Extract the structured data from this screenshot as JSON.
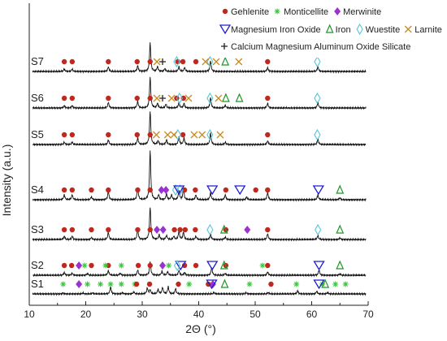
{
  "chart_data": {
    "type": "line",
    "title": "",
    "xlabel": "2Θ (°)",
    "ylabel": "Intensity (a.u.)",
    "xlim": [
      10,
      70
    ],
    "xticks": [
      "10",
      "20",
      "30",
      "40",
      "50",
      "60",
      "70"
    ],
    "grid": false,
    "legend_position": "top-right",
    "legend": [
      {
        "name": "Gehlenite",
        "marker": "circle",
        "color": "#c0281e"
      },
      {
        "name": "Monticellite",
        "marker": "asterisk",
        "color": "#3cc83c"
      },
      {
        "name": "Merwinite",
        "marker": "diamond",
        "color": "#9a32d2"
      },
      {
        "name": "Magnesium Iron Oxide",
        "marker": "triangle-down",
        "color": "#1e1ed2"
      },
      {
        "name": "Iron",
        "marker": "triangle-up",
        "color": "#1e9628"
      },
      {
        "name": "Wuestite",
        "marker": "diamond-open",
        "color": "#50c8dc"
      },
      {
        "name": "Larnite",
        "marker": "cross",
        "color": "#c88c1e"
      },
      {
        "name": "Calcium Magnesium Aluminum Oxide Silicate",
        "marker": "plus",
        "color": "#222222"
      }
    ],
    "series": [
      {
        "name": "S7",
        "peaks": [
          [
            16.2,
            0.05
          ],
          [
            17.6,
            0.05
          ],
          [
            24.0,
            0.1
          ],
          [
            29.2,
            0.12
          ],
          [
            31.4,
            0.6
          ],
          [
            32.7,
            0.1
          ],
          [
            34.0,
            0.06
          ],
          [
            36.5,
            0.1
          ],
          [
            37.5,
            0.08
          ],
          [
            42.1,
            0.22
          ],
          [
            52.2,
            0.08
          ],
          [
            61.1,
            0.1
          ]
        ],
        "markers": [
          {
            "type": "Gehlenite",
            "x": [
              16.2,
              17.6,
              24.0,
              29.1,
              31.4,
              36.3,
              37.2,
              39.5,
              52.2
            ]
          },
          {
            "type": "Wuestite",
            "x": [
              36.1,
              42.0,
              61.0
            ]
          },
          {
            "type": "Iron",
            "x": [
              44.7
            ]
          },
          {
            "type": "Larnite",
            "x": [
              32.6,
              41.2,
              43.1,
              47.1
            ]
          },
          {
            "type": "Calcium Magnesium Aluminum Oxide Silicate",
            "x": [
              33.6
            ]
          }
        ]
      },
      {
        "name": "S6",
        "peaks": [
          [
            16.2,
            0.05
          ],
          [
            17.6,
            0.05
          ],
          [
            24.0,
            0.12
          ],
          [
            29.2,
            0.14
          ],
          [
            31.4,
            0.65
          ],
          [
            32.7,
            0.1
          ],
          [
            34.2,
            0.08
          ],
          [
            36.5,
            0.12
          ],
          [
            37.4,
            0.1
          ],
          [
            42.1,
            0.22
          ],
          [
            44.7,
            0.06
          ],
          [
            52.2,
            0.1
          ],
          [
            61.1,
            0.12
          ]
        ],
        "markers": [
          {
            "type": "Gehlenite",
            "x": [
              16.2,
              17.6,
              24.0,
              29.1,
              31.4,
              36.1,
              37.3,
              52.2
            ]
          },
          {
            "type": "Wuestite",
            "x": [
              36.6,
              42.0,
              61.0
            ]
          },
          {
            "type": "Iron",
            "x": [
              44.8,
              47.2
            ]
          },
          {
            "type": "Larnite",
            "x": [
              32.6,
              35.2,
              38.2,
              43.5
            ]
          },
          {
            "type": "Calcium Magnesium Aluminum Oxide Silicate",
            "x": [
              33.6
            ]
          }
        ]
      },
      {
        "name": "S5",
        "peaks": [
          [
            16.2,
            0.05
          ],
          [
            17.6,
            0.05
          ],
          [
            24.0,
            0.1
          ],
          [
            29.2,
            0.14
          ],
          [
            31.4,
            0.7
          ],
          [
            32.8,
            0.08
          ],
          [
            34.3,
            0.1
          ],
          [
            36.5,
            0.16
          ],
          [
            37.4,
            0.14
          ],
          [
            42.1,
            0.24
          ],
          [
            44.7,
            0.05
          ],
          [
            52.2,
            0.08
          ],
          [
            61.1,
            0.12
          ]
        ],
        "markers": [
          {
            "type": "Gehlenite",
            "x": [
              16.2,
              17.6,
              24.0,
              29.1,
              31.4,
              37.2,
              52.2
            ]
          },
          {
            "type": "Wuestite",
            "x": [
              36.3,
              42.0,
              61.0
            ]
          },
          {
            "type": "Larnite",
            "x": [
              32.5,
              34.5,
              35.6,
              39.2,
              40.6,
              43.8
            ]
          }
        ]
      },
      {
        "name": "S4",
        "peaks": [
          [
            16.2,
            0.1
          ],
          [
            17.6,
            0.1
          ],
          [
            21.0,
            0.06
          ],
          [
            24.0,
            0.18
          ],
          [
            29.2,
            0.25
          ],
          [
            31.4,
            1.0
          ],
          [
            32.9,
            0.1
          ],
          [
            34.3,
            0.12
          ],
          [
            35.2,
            0.1
          ],
          [
            36.5,
            0.18
          ],
          [
            37.3,
            0.22
          ],
          [
            39.5,
            0.1
          ],
          [
            42.1,
            0.14
          ],
          [
            44.7,
            0.1
          ],
          [
            48.5,
            0.06
          ],
          [
            52.2,
            0.15
          ],
          [
            61.1,
            0.1
          ],
          [
            65.0,
            0.04
          ]
        ],
        "markers": [
          {
            "type": "Gehlenite",
            "x": [
              16.2,
              17.6,
              21.0,
              24.0,
              29.2,
              31.4,
              37.5,
              39.4,
              44.8,
              50.1,
              52.2
            ]
          },
          {
            "type": "Merwinite",
            "x": [
              33.4,
              34.2
            ]
          },
          {
            "type": "Wuestite",
            "x": [
              35.9,
              36.7
            ]
          },
          {
            "type": "Magnesium Iron Oxide",
            "x": [
              36.5,
              42.4,
              47.3,
              61.2
            ]
          },
          {
            "type": "Iron",
            "x": [
              65.0
            ]
          }
        ]
      },
      {
        "name": "S3",
        "peaks": [
          [
            16.2,
            0.08
          ],
          [
            17.6,
            0.08
          ],
          [
            21.0,
            0.05
          ],
          [
            24.0,
            0.18
          ],
          [
            29.2,
            0.25
          ],
          [
            31.4,
            0.8
          ],
          [
            33.0,
            0.12
          ],
          [
            34.3,
            0.1
          ],
          [
            35.6,
            0.08
          ],
          [
            36.5,
            0.2
          ],
          [
            37.3,
            0.18
          ],
          [
            39.5,
            0.08
          ],
          [
            42.1,
            0.14
          ],
          [
            44.7,
            0.06
          ],
          [
            52.2,
            0.14
          ],
          [
            61.1,
            0.1
          ],
          [
            65.0,
            0.04
          ]
        ],
        "markers": [
          {
            "type": "Gehlenite",
            "x": [
              16.2,
              17.6,
              21.0,
              24.0,
              29.2,
              31.4,
              35.7,
              36.7,
              37.6,
              39.4,
              44.8,
              52.2
            ]
          },
          {
            "type": "Merwinite",
            "x": [
              32.6,
              33.7,
              48.6
            ]
          },
          {
            "type": "Wuestite",
            "x": [
              42.0,
              61.1
            ]
          },
          {
            "type": "Iron",
            "x": [
              44.5,
              65.0
            ]
          }
        ]
      },
      {
        "name": "S2",
        "peaks": [
          [
            16.2,
            0.08
          ],
          [
            17.6,
            0.06
          ],
          [
            20.3,
            0.05
          ],
          [
            24.0,
            0.14
          ],
          [
            26.1,
            0.06
          ],
          [
            29.2,
            0.15
          ],
          [
            31.4,
            0.4
          ],
          [
            33.5,
            0.12
          ],
          [
            34.5,
            0.1
          ],
          [
            36.5,
            0.14
          ],
          [
            37.5,
            0.08
          ],
          [
            42.3,
            0.22
          ],
          [
            44.7,
            0.05
          ],
          [
            52.2,
            0.1
          ],
          [
            61.3,
            0.15
          ],
          [
            65.0,
            0.04
          ]
        ],
        "markers": [
          {
            "type": "Gehlenite",
            "x": [
              16.2,
              17.5,
              21.0,
              24.0,
              29.3,
              31.4,
              37.5,
              39.5,
              44.8,
              52.2
            ]
          },
          {
            "type": "Monticellite",
            "x": [
              19.8,
              23.5,
              26.3,
              34.7,
              51.3
            ]
          },
          {
            "type": "Merwinite",
            "x": [
              18.8,
              33.6
            ]
          },
          {
            "type": "Magnesium Iron Oxide",
            "x": [
              36.8,
              42.4,
              61.3
            ]
          },
          {
            "type": "Wuestite",
            "x": [
              36.2
            ]
          },
          {
            "type": "Iron",
            "x": [
              44.5,
              65.0
            ]
          }
        ]
      },
      {
        "name": "S1",
        "peaks": [
          [
            16.0,
            0.03
          ],
          [
            19.5,
            0.03
          ],
          [
            21.2,
            0.03
          ],
          [
            24.4,
            0.22
          ],
          [
            26.5,
            0.04
          ],
          [
            28.5,
            0.06
          ],
          [
            30.9,
            0.18
          ],
          [
            31.4,
            0.12
          ],
          [
            32.8,
            0.14
          ],
          [
            33.6,
            0.2
          ],
          [
            34.6,
            0.22
          ],
          [
            35.9,
            0.16
          ],
          [
            42.7,
            0.04
          ],
          [
            48.4,
            0.04
          ],
          [
            52.3,
            0.04
          ],
          [
            57.5,
            0.1
          ],
          [
            60.9,
            0.08
          ],
          [
            62.8,
            0.04
          ]
        ],
        "markers": [
          {
            "type": "Monticellite",
            "x": [
              16.0,
              20.3,
              22.6,
              24.4,
              26.3,
              28.7,
              38.3,
              49.0,
              57.3,
              61.9,
              64.2,
              66.0
            ]
          },
          {
            "type": "Merwinite",
            "x": [
              18.8,
              42.5
            ]
          },
          {
            "type": "Gehlenite",
            "x": [
              29.0,
              31.3,
              36.4,
              41.7,
              52.8
            ]
          },
          {
            "type": "Magnesium Iron Oxide",
            "x": [
              42.3,
              61.3
            ]
          },
          {
            "type": "Iron",
            "x": [
              44.6,
              62.4
            ]
          }
        ]
      }
    ]
  }
}
